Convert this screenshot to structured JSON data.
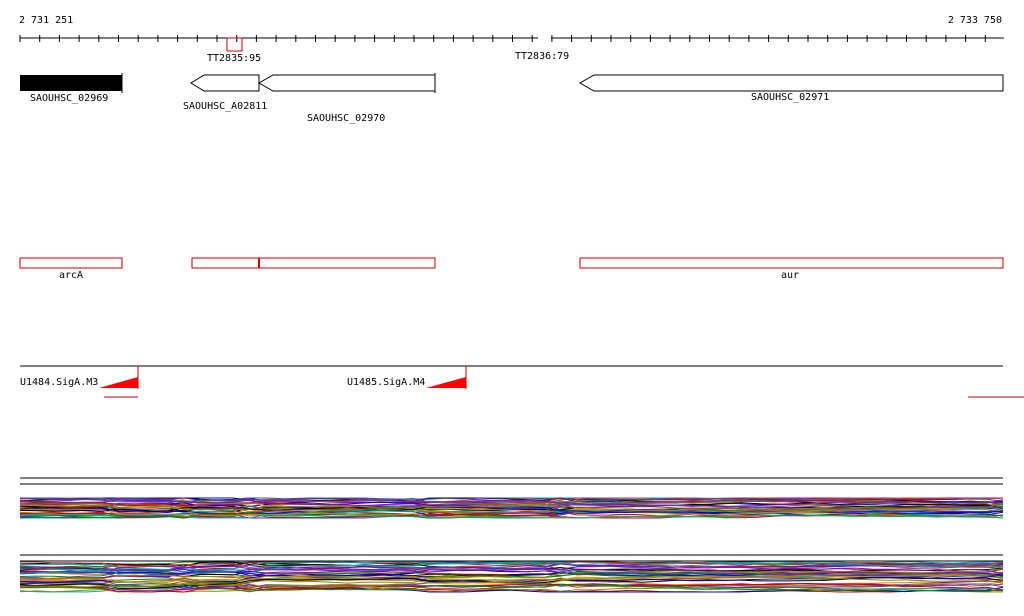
{
  "coordinates": {
    "start": "2 731 251",
    "end": "2 733 750"
  },
  "terminators": [
    {
      "label": "TT2835:95"
    },
    {
      "label": "TT2836:79"
    }
  ],
  "genes": [
    {
      "label": "SAOUHSC_02969",
      "strand": "filled"
    },
    {
      "label": "SAOUHSC_A02811",
      "strand": "-"
    },
    {
      "label": "SAOUHSC_02970",
      "strand": "-"
    },
    {
      "label": "SAOUHSC_02971",
      "strand": "-"
    }
  ],
  "gene_names": [
    {
      "label": "arcA"
    },
    {
      "label": ""
    },
    {
      "label": "aur"
    }
  ],
  "promoters": [
    {
      "label": "U1484.SigA.M3"
    },
    {
      "label": "U1485.SigA.M4"
    }
  ],
  "colors": {
    "line": "#000000",
    "feature_outline": "#cc0000",
    "promoter": "#ff0000",
    "expression_palette": [
      "#000000",
      "#cc0000",
      "#0000cc",
      "#008800",
      "#cc8800",
      "#8800cc",
      "#00aaaa",
      "#888800",
      "#aa4444",
      "#4444aa"
    ]
  }
}
